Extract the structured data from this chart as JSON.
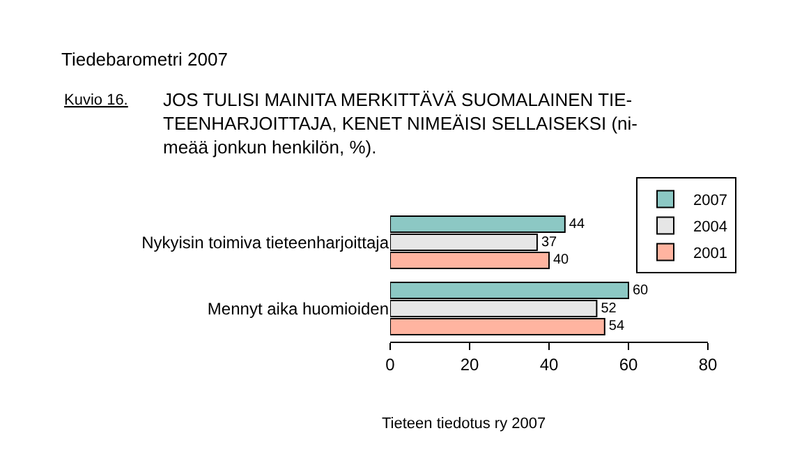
{
  "chart_data": {
    "type": "bar",
    "orientation": "horizontal",
    "title": "Tiedebarometri 2007",
    "subtitle": "JOS TULISI MAINITA MERKITTÄVÄ SUOMALAINEN TIE-\nTEENHARJOITTAJA, KENET NIMEÄISI SELLAISEKSI (ni-\nmeää jonkun henkilön, %).",
    "annotations": [
      "Kuvio 16.",
      "Tieteen tiedotus ry 2007"
    ],
    "categories": [
      "Nykyisin toimiva tieteenharjoittaja",
      "Mennyt aika huomioiden"
    ],
    "series": [
      {
        "name": "2007",
        "color": "#8cc8c4",
        "values": [
          44,
          60
        ]
      },
      {
        "name": "2004",
        "color": "#e6e6e6",
        "values": [
          37,
          52
        ]
      },
      {
        "name": "2001",
        "color": "#ffb4a0",
        "values": [
          40,
          54
        ]
      }
    ],
    "xlim": [
      0,
      80
    ],
    "xticks": [
      0,
      20,
      40,
      60,
      80
    ],
    "data_labels": true,
    "legend": "top right"
  }
}
